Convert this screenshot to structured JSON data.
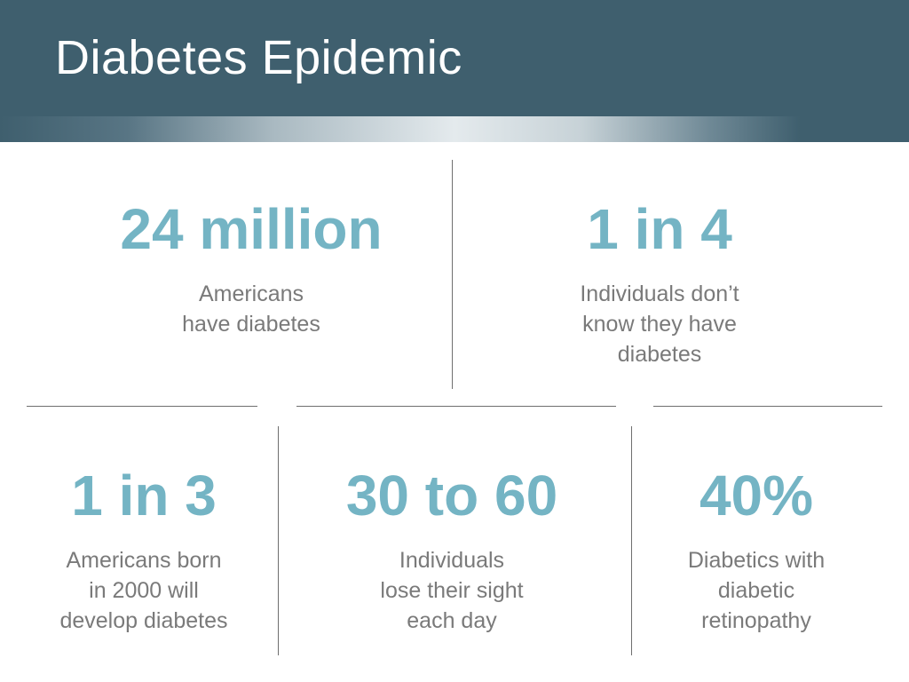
{
  "slide": {
    "title": "Diabetes Epidemic"
  },
  "stats": [
    {
      "number": "24 million",
      "description": "Americans\nhave diabetes"
    },
    {
      "number": "1 in 4",
      "description": "Individuals don’t\nknow they have\ndiabetes"
    },
    {
      "number": "1 in 3",
      "description": "Americans born\nin 2000 will\ndevelop diabetes"
    },
    {
      "number": "30 to 60",
      "description": "Individuals\nlose their sight\neach day"
    },
    {
      "number": "40%",
      "description": "Diabetics with\ndiabetic\nretinopathy"
    }
  ],
  "colors": {
    "header": "#3f5f6e",
    "accent": "#74b4c4",
    "body_text": "#7a7a7a",
    "divider": "#6f6f6f"
  }
}
